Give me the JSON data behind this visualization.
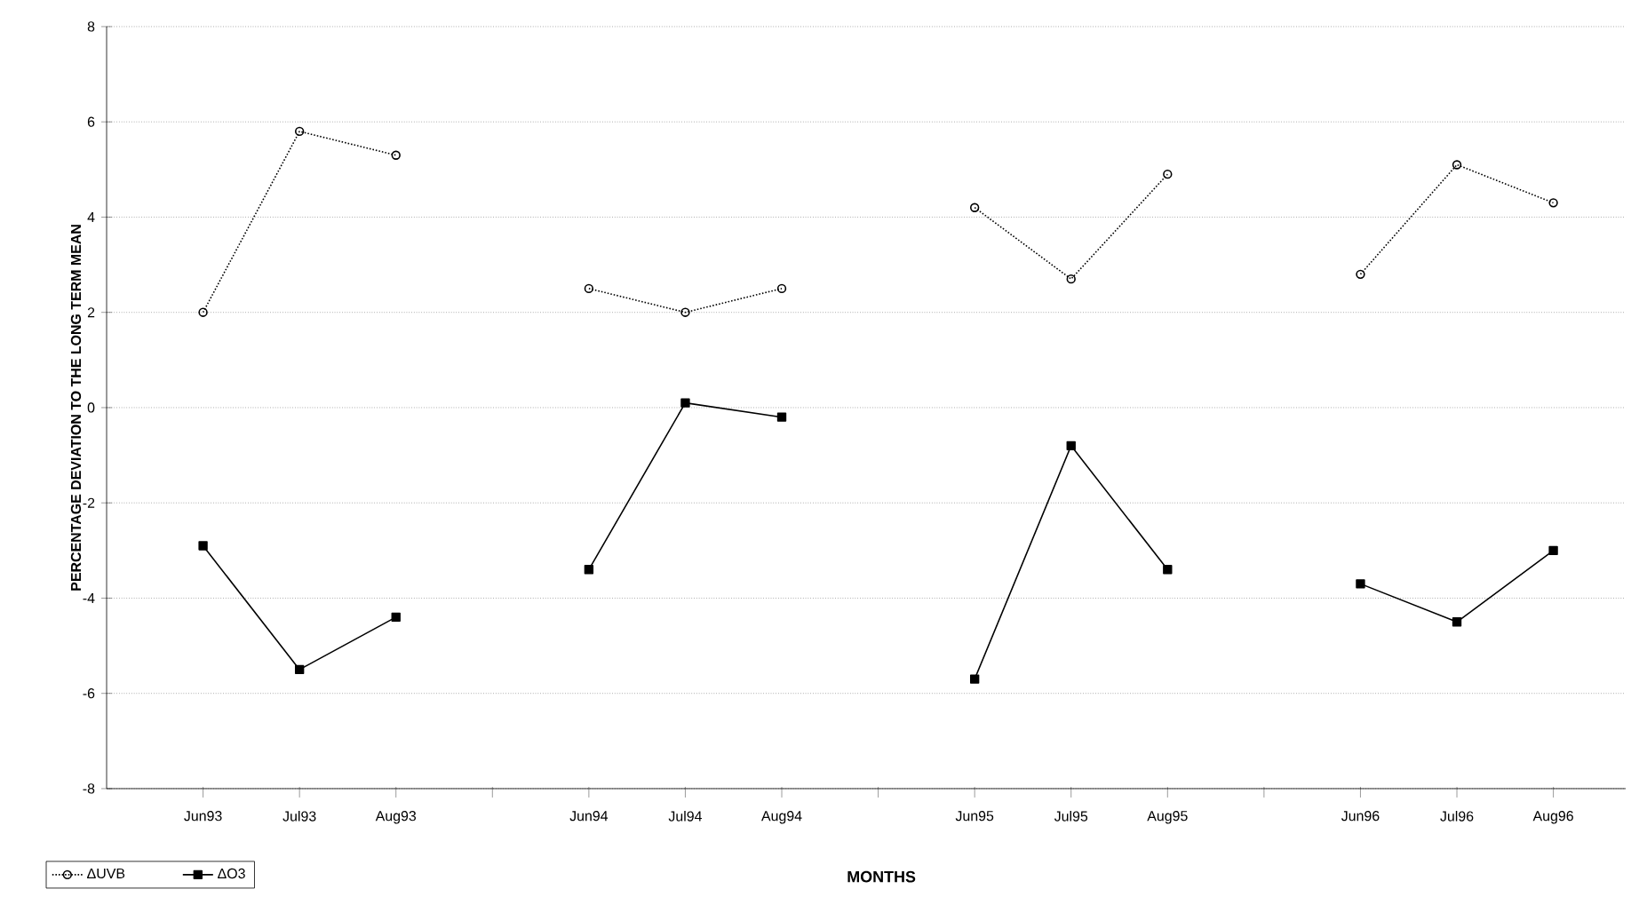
{
  "chart_data": {
    "type": "line",
    "xlabel": "MONTHS",
    "ylabel": "PERCENTAGE DEVIATION TO THE LONG TERM MEAN",
    "categories": [
      "Jun93",
      "Jul93",
      "Aug93",
      null,
      "Jun94",
      "Jul94",
      "Aug94",
      null,
      "Jun95",
      "Jul95",
      "Aug95",
      null,
      "Jun96",
      "Jul96",
      "Aug96"
    ],
    "series": [
      {
        "name": "ΔUVB",
        "color": "#000000",
        "marker": "circle",
        "line_style": "dotted",
        "values": [
          2.0,
          5.8,
          5.3,
          null,
          2.5,
          2.0,
          2.5,
          null,
          4.2,
          2.7,
          4.9,
          null,
          2.8,
          5.1,
          4.3
        ]
      },
      {
        "name": "ΔO3",
        "color": "#000000",
        "marker": "square",
        "line_style": "solid",
        "values": [
          -2.9,
          -5.5,
          -4.4,
          null,
          -3.4,
          0.1,
          -0.2,
          null,
          -5.7,
          -0.8,
          -3.4,
          null,
          -3.7,
          -4.5,
          -3.0
        ]
      }
    ],
    "ylim": [
      -8,
      8
    ],
    "yticks": [
      -8,
      -6,
      -4,
      -2,
      0,
      2,
      4,
      6,
      8
    ],
    "grid": "y",
    "legend": "bottom left"
  }
}
